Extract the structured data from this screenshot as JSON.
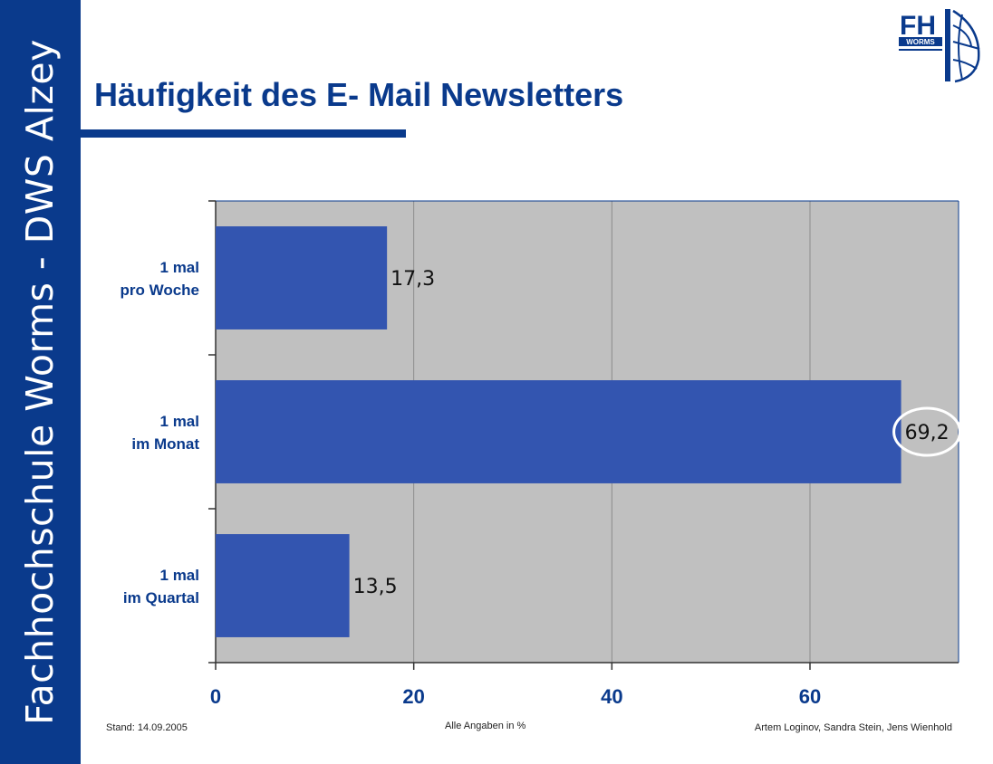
{
  "sidebar": {
    "text": "Fachhochschule Worms - DWS Alzey"
  },
  "header": {
    "title": "Häufigkeit des E- Mail Newsletters"
  },
  "logo": {
    "line1": "FH",
    "line2": "WORMS"
  },
  "footer": {
    "left": "Stand: 14.09.2005",
    "center": "Alle Angaben in %",
    "right": "Artem Loginov, Sandra Stein, Jens Wienhold"
  },
  "colors": {
    "primary": "#0a3a8c",
    "bar": "#3355b0",
    "plot_background": "#c0c0c0",
    "highlight_ellipse": "#ffffff"
  },
  "chart_data": {
    "type": "bar",
    "orientation": "horizontal",
    "categories": [
      [
        "1 mal",
        "pro Woche"
      ],
      [
        "1 mal",
        "im Monat"
      ],
      [
        "1 mal",
        "im Quartal"
      ]
    ],
    "values": [
      17.3,
      69.2,
      13.5
    ],
    "data_labels": [
      "17,3",
      "69,2",
      "13,5"
    ],
    "highlighted_index": 1,
    "xlim": [
      0,
      75
    ],
    "xticks": [
      0,
      20,
      40,
      60
    ],
    "xtick_labels": [
      "0",
      "20",
      "40",
      "60"
    ],
    "grid": true,
    "legend": "none"
  }
}
